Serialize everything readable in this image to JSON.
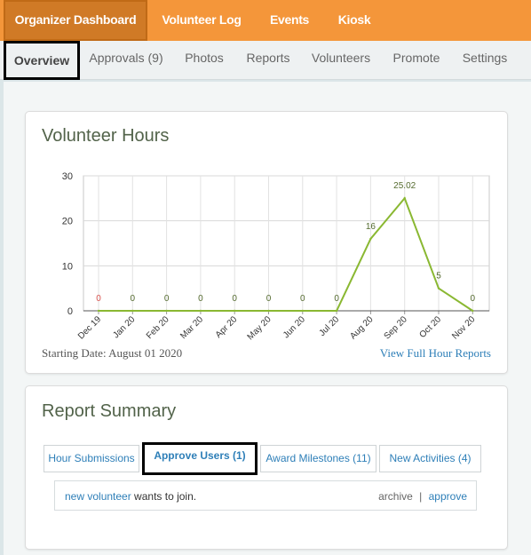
{
  "top_nav": {
    "tabs": [
      {
        "label": "Organizer Dashboard",
        "active": true
      },
      {
        "label": "Volunteer Log",
        "active": false
      },
      {
        "label": "Events",
        "active": false
      },
      {
        "label": "Kiosk",
        "active": false
      }
    ]
  },
  "sub_nav": {
    "items": [
      {
        "label": "Overview",
        "active": true
      },
      {
        "label": "Approvals (9)",
        "active": false
      },
      {
        "label": "Photos",
        "active": false
      },
      {
        "label": "Reports",
        "active": false
      },
      {
        "label": "Volunteers",
        "active": false
      },
      {
        "label": "Promote",
        "active": false
      },
      {
        "label": "Settings",
        "active": false
      }
    ]
  },
  "hours_card": {
    "title": "Volunteer Hours",
    "starting_date": "Starting Date: August 01 2020",
    "view_link": "View Full Hour Reports"
  },
  "chart_data": {
    "type": "line",
    "title": "Volunteer Hours",
    "categories": [
      "Dec 19",
      "Jan 20",
      "Feb 20",
      "Mar 20",
      "Apr 20",
      "May 20",
      "Jun 20",
      "Jul 20",
      "Aug 20",
      "Sep 20",
      "Oct 20",
      "Nov 20"
    ],
    "series": [
      {
        "values": [
          0,
          0,
          0,
          0,
          0,
          0,
          0,
          0,
          16,
          25.02,
          5,
          0
        ],
        "color": "#8ab832"
      }
    ],
    "data_labels": [
      "0",
      "0",
      "0",
      "0",
      "0",
      "0",
      "0",
      "0",
      "16",
      "25.02",
      "5",
      "0"
    ],
    "first_label_color": "#d9534f",
    "label_color": "#556b2f",
    "y_ticks": [
      "0",
      "10",
      "20",
      "30"
    ],
    "ylim": [
      0,
      30
    ],
    "grid": true
  },
  "summary_card": {
    "title": "Report Summary",
    "tabs": [
      {
        "label": "Hour Submissions",
        "active": false
      },
      {
        "label": "Approve Users (1)",
        "active": true
      },
      {
        "label": "Award Milestones (11)",
        "active": false
      },
      {
        "label": "New Activities (4)",
        "active": false
      }
    ],
    "message": {
      "user_link": "new volunteer",
      "text": " wants to join.",
      "archive": "archive",
      "separator": "|",
      "approve": "approve"
    }
  },
  "colors": {
    "top_nav_bg": "#f4963a",
    "top_nav_active_bg": "#d07a26",
    "link": "#2e7fb8",
    "chart_line": "#8ab832",
    "title_text": "#52634a"
  }
}
